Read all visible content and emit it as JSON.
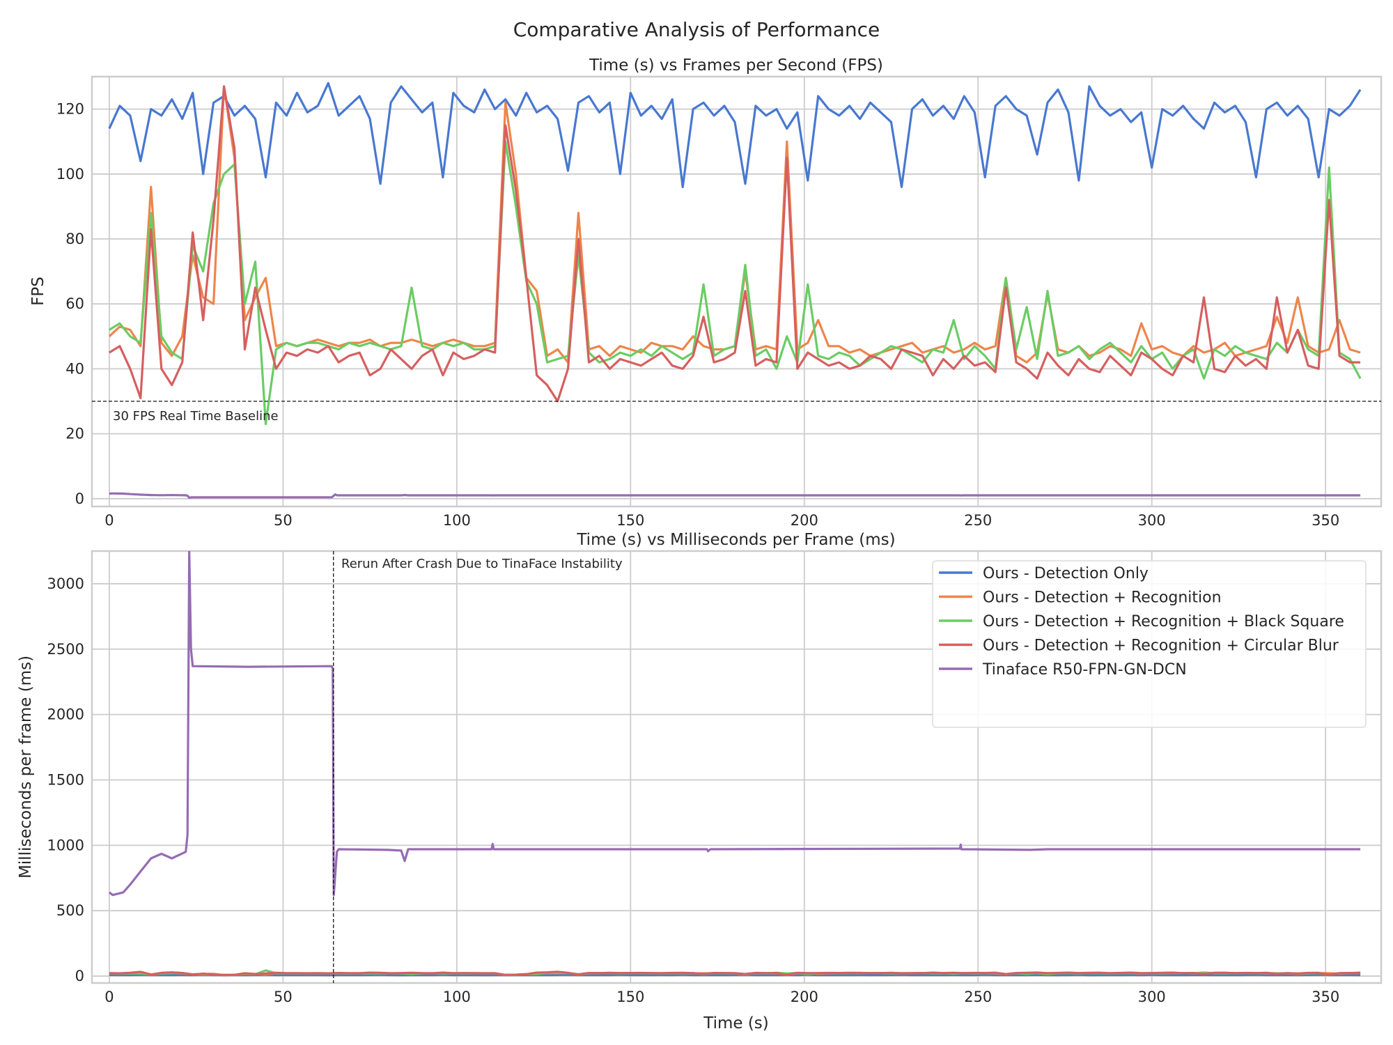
{
  "figure_title": "Comparative Analysis of Performance",
  "colors": {
    "blue": "#4878d0",
    "orange": "#ee854a",
    "green": "#6acc64",
    "red": "#d65f5f",
    "purple": "#956cb4",
    "grid": "#cccccc"
  },
  "chart_data": [
    {
      "type": "line",
      "title": "Time (s) vs Frames per Second (FPS)",
      "xlabel": "",
      "ylabel": "FPS",
      "xlim": [
        -5,
        366
      ],
      "ylim": [
        -2.4,
        130
      ],
      "xticks": [
        0,
        50,
        100,
        150,
        200,
        250,
        300,
        350
      ],
      "yticks": [
        0,
        20,
        40,
        60,
        80,
        100,
        120
      ],
      "grid": true,
      "x_step": 3,
      "series": [
        {
          "name": "Ours - Detection Only",
          "color": "#4878d0",
          "values": [
            114,
            121,
            118,
            104,
            120,
            118,
            123,
            117,
            125,
            100,
            122,
            124,
            118,
            121,
            117,
            99,
            122,
            118,
            125,
            119,
            121,
            128,
            118,
            121,
            124,
            117,
            97,
            122,
            127,
            123,
            119,
            122,
            99,
            125,
            121,
            119,
            126,
            120,
            123,
            118,
            125,
            119,
            121,
            117,
            101,
            122,
            124,
            119,
            122,
            100,
            125,
            118,
            121,
            117,
            123,
            96,
            120,
            122,
            118,
            121,
            116,
            97,
            121,
            118,
            120,
            114,
            119,
            98,
            124,
            120,
            118,
            121,
            117,
            122,
            119,
            116,
            96,
            120,
            123,
            118,
            121,
            117,
            124,
            119,
            99,
            121,
            124,
            120,
            118,
            106,
            122,
            126,
            119,
            98,
            127,
            121,
            118,
            120,
            116,
            119,
            102,
            120,
            118,
            121,
            117,
            114,
            122,
            119,
            121,
            116,
            99,
            120,
            122,
            118,
            121,
            117,
            99,
            120,
            118,
            121,
            126
          ]
        },
        {
          "name": "Ours - Detection + Recognition",
          "color": "#ee854a",
          "values": [
            50,
            53,
            52,
            47,
            96,
            48,
            44,
            50,
            75,
            62,
            60,
            127,
            105,
            55,
            62,
            68,
            47,
            48,
            47,
            48,
            49,
            48,
            47,
            48,
            48,
            49,
            47,
            48,
            48,
            49,
            48,
            47,
            48,
            49,
            48,
            47,
            47,
            48,
            122,
            100,
            68,
            64,
            44,
            46,
            42,
            88,
            46,
            47,
            44,
            47,
            46,
            45,
            48,
            47,
            47,
            46,
            50,
            47,
            46,
            46,
            47,
            70,
            46,
            47,
            46,
            110,
            46,
            48,
            55,
            47,
            47,
            45,
            46,
            44,
            45,
            46,
            47,
            48,
            45,
            46,
            47,
            45,
            46,
            48,
            46,
            47,
            68,
            44,
            42,
            45,
            63,
            46,
            45,
            47,
            44,
            45,
            47,
            46,
            44,
            54,
            46,
            47,
            45,
            44,
            47,
            45,
            46,
            48,
            44,
            45,
            46,
            47,
            56,
            48,
            62,
            47,
            45,
            46,
            55,
            46,
            45
          ]
        },
        {
          "name": "Ours - Detection + Recognition + Black Square",
          "color": "#6acc64",
          "values": [
            52,
            54,
            50,
            48,
            88,
            50,
            45,
            43,
            78,
            70,
            91,
            100,
            103,
            60,
            73,
            23,
            46,
            48,
            47,
            48,
            48,
            47,
            46,
            48,
            47,
            48,
            47,
            46,
            47,
            65,
            47,
            46,
            48,
            47,
            48,
            46,
            46,
            47,
            110,
            90,
            67,
            60,
            42,
            43,
            44,
            75,
            45,
            42,
            43,
            45,
            44,
            46,
            44,
            47,
            45,
            43,
            45,
            66,
            44,
            46,
            47,
            72,
            44,
            46,
            40,
            50,
            42,
            66,
            44,
            43,
            45,
            44,
            41,
            43,
            45,
            47,
            46,
            44,
            42,
            46,
            45,
            55,
            43,
            47,
            44,
            40,
            68,
            46,
            59,
            43,
            64,
            44,
            45,
            47,
            43,
            46,
            48,
            45,
            42,
            47,
            43,
            45,
            40,
            44,
            46,
            37,
            46,
            44,
            47,
            45,
            44,
            43,
            48,
            45,
            52,
            46,
            44,
            102,
            45,
            43,
            37
          ]
        },
        {
          "name": "Ours - Detection + Recognition + Circular Blur",
          "color": "#d65f5f",
          "values": [
            45,
            47,
            40,
            31,
            83,
            40,
            35,
            42,
            82,
            55,
            86,
            127,
            108,
            46,
            65,
            52,
            40,
            45,
            44,
            46,
            45,
            47,
            42,
            44,
            45,
            38,
            40,
            46,
            43,
            40,
            44,
            46,
            38,
            45,
            43,
            44,
            46,
            45,
            115,
            95,
            68,
            38,
            35,
            30,
            40,
            80,
            42,
            44,
            40,
            43,
            42,
            41,
            43,
            45,
            41,
            40,
            44,
            56,
            42,
            43,
            45,
            64,
            41,
            43,
            42,
            105,
            40,
            45,
            43,
            41,
            42,
            40,
            41,
            44,
            43,
            40,
            46,
            45,
            44,
            38,
            43,
            40,
            44,
            41,
            42,
            39,
            65,
            42,
            40,
            37,
            45,
            41,
            38,
            43,
            40,
            39,
            44,
            41,
            38,
            45,
            43,
            40,
            38,
            44,
            42,
            62,
            40,
            39,
            44,
            41,
            43,
            40,
            62,
            45,
            52,
            41,
            40,
            92,
            44,
            42,
            42
          ]
        },
        {
          "name": "Tinaface R50-FPN-GN-DCN",
          "color": "#956cb4",
          "derived_from_ms": true
        }
      ],
      "annotations": [
        {
          "type": "hline",
          "y": 30,
          "style": "dashed",
          "label": "30 FPS Real Time Baseline"
        }
      ]
    },
    {
      "type": "line",
      "title": "Time (s) vs Milliseconds per Frame (ms)",
      "xlabel": "Time (s)",
      "ylabel": "Milliseconds per frame (ms)",
      "xlim": [
        -5,
        366
      ],
      "ylim": [
        -53,
        3250
      ],
      "xticks": [
        0,
        50,
        100,
        150,
        200,
        250,
        300,
        350
      ],
      "yticks": [
        0,
        500,
        1000,
        1500,
        2000,
        2500,
        3000
      ],
      "grid": true,
      "legend_position": "upper-right",
      "ours_ms_note": "1000 / FPS",
      "tinaface_ms": [
        [
          0,
          640
        ],
        [
          1,
          620
        ],
        [
          4,
          640
        ],
        [
          6,
          700
        ],
        [
          9,
          800
        ],
        [
          12,
          900
        ],
        [
          15,
          935
        ],
        [
          18,
          900
        ],
        [
          20,
          925
        ],
        [
          22,
          950
        ],
        [
          22.5,
          1080
        ],
        [
          23,
          3250
        ],
        [
          23.5,
          2500
        ],
        [
          24,
          2370
        ],
        [
          40,
          2365
        ],
        [
          64,
          2370
        ],
        [
          64.3,
          2350
        ],
        [
          64.6,
          620
        ],
        [
          65.5,
          950
        ],
        [
          66,
          970
        ],
        [
          80,
          965
        ],
        [
          84,
          960
        ],
        [
          85,
          880
        ],
        [
          86,
          970
        ],
        [
          110,
          970
        ],
        [
          110.3,
          1010
        ],
        [
          110.6,
          970
        ],
        [
          172,
          970
        ],
        [
          172.3,
          955
        ],
        [
          173,
          970
        ],
        [
          244.8,
          975
        ],
        [
          245,
          1005
        ],
        [
          245.2,
          970
        ],
        [
          265,
          965
        ],
        [
          270,
          970
        ],
        [
          360,
          970
        ]
      ],
      "annotations": [
        {
          "type": "vline",
          "x": 64.5,
          "style": "dashed",
          "label": "Rerun After Crash Due to TinaFace Instability"
        }
      ]
    }
  ]
}
